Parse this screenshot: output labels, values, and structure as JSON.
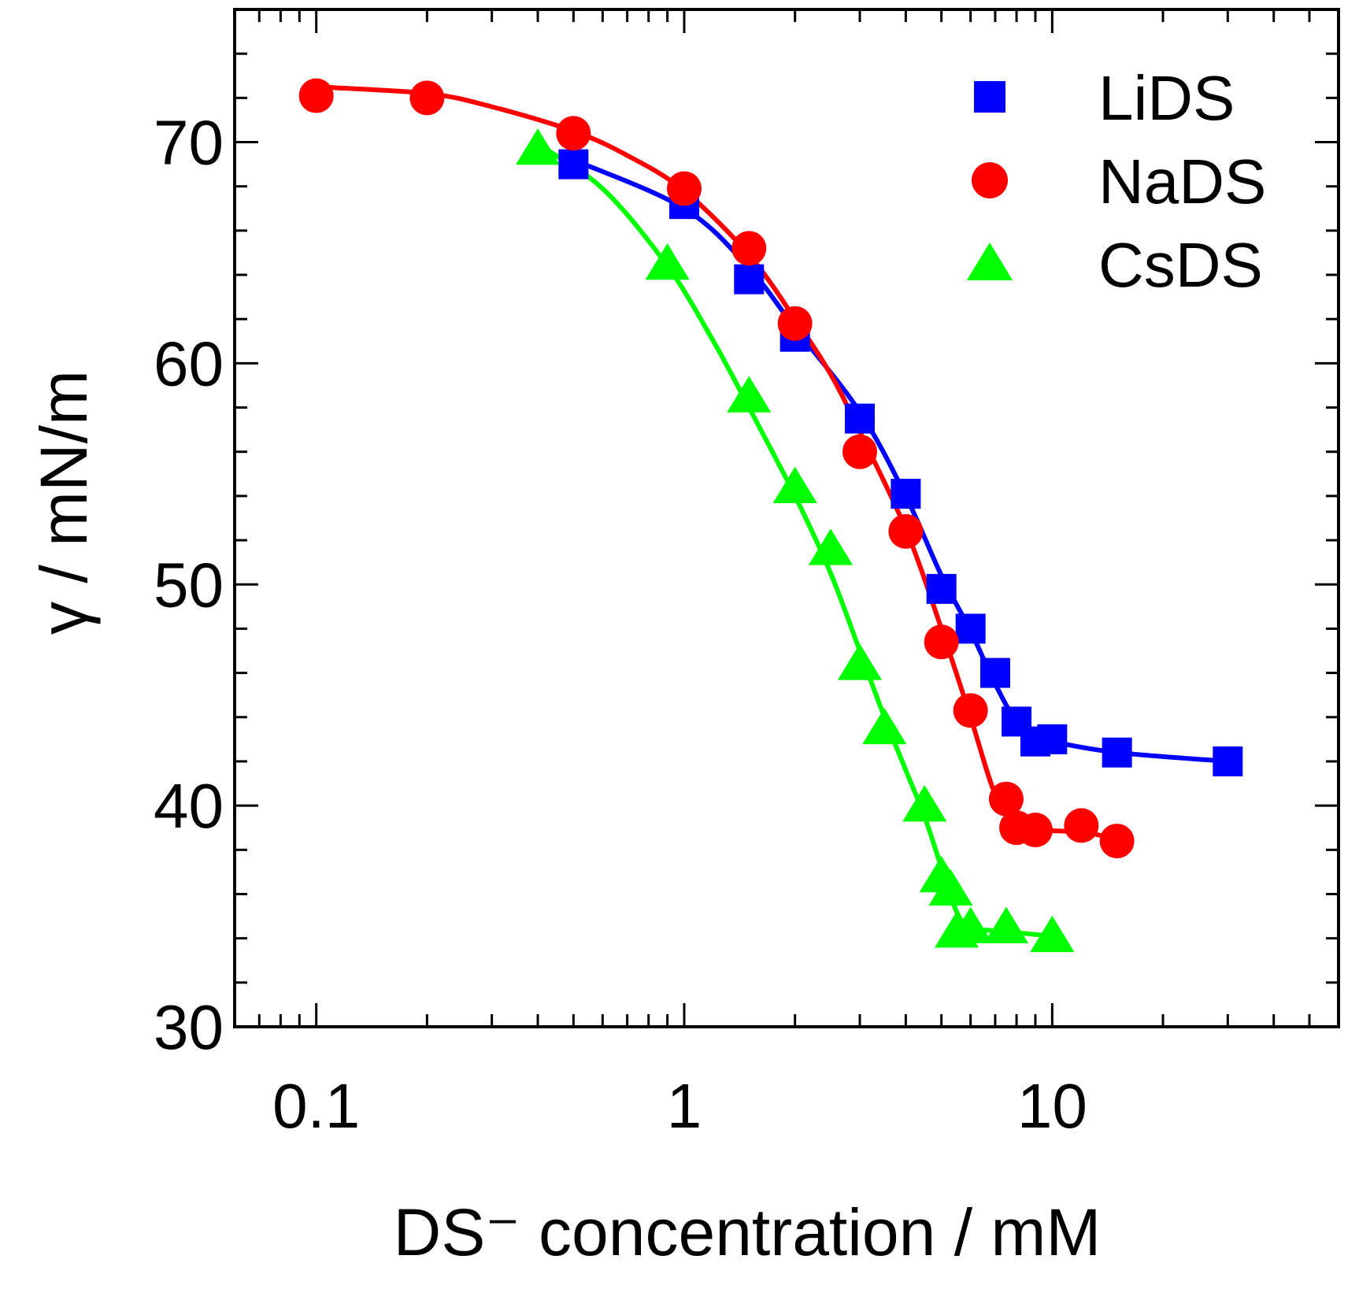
{
  "chart_data": {
    "type": "line",
    "x_scale": "log",
    "xlabel": "DS⁻ concentration / mM",
    "ylabel": "γ / mN/m",
    "xlim": [
      0.06,
      60
    ],
    "ylim": [
      30,
      76
    ],
    "x_ticks": [
      {
        "value": 0.1,
        "label": "0.1"
      },
      {
        "value": 1,
        "label": "1"
      },
      {
        "value": 10,
        "label": "10"
      }
    ],
    "y_ticks": [
      {
        "value": 30,
        "label": "30"
      },
      {
        "value": 40,
        "label": "40"
      },
      {
        "value": 50,
        "label": "50"
      },
      {
        "value": 60,
        "label": "60"
      },
      {
        "value": 70,
        "label": "70"
      }
    ],
    "y_minor_step": 2,
    "legend_position": "top-right",
    "series": [
      {
        "name": "LiDS",
        "color": "#0000ff",
        "marker": "square",
        "points": [
          {
            "x": 0.5,
            "y": 69.0
          },
          {
            "x": 1.0,
            "y": 67.2
          },
          {
            "x": 1.5,
            "y": 63.8
          },
          {
            "x": 2.0,
            "y": 61.2
          },
          {
            "x": 3.0,
            "y": 57.5
          },
          {
            "x": 4.0,
            "y": 54.1
          },
          {
            "x": 5.0,
            "y": 49.8
          },
          {
            "x": 6.0,
            "y": 48.0
          },
          {
            "x": 7.0,
            "y": 46.0
          },
          {
            "x": 8.0,
            "y": 43.8
          },
          {
            "x": 9.0,
            "y": 42.9
          },
          {
            "x": 10.0,
            "y": 43.0
          },
          {
            "x": 15.0,
            "y": 42.4
          },
          {
            "x": 30.0,
            "y": 42.0
          }
        ],
        "fit": [
          {
            "x": 0.5,
            "y": 69.2
          },
          {
            "x": 1.0,
            "y": 67.0
          },
          {
            "x": 1.5,
            "y": 64.3
          },
          {
            "x": 2.0,
            "y": 61.6
          },
          {
            "x": 3.0,
            "y": 57.8
          },
          {
            "x": 4.0,
            "y": 54.0
          },
          {
            "x": 5.0,
            "y": 50.4
          },
          {
            "x": 6.0,
            "y": 47.9
          },
          {
            "x": 7.0,
            "y": 45.5
          },
          {
            "x": 8.0,
            "y": 43.8
          },
          {
            "x": 9.0,
            "y": 43.2
          },
          {
            "x": 10.0,
            "y": 42.9
          },
          {
            "x": 15.0,
            "y": 42.4
          },
          {
            "x": 30.0,
            "y": 42.0
          }
        ]
      },
      {
        "name": "NaDS",
        "color": "#ff0000",
        "marker": "circle",
        "points": [
          {
            "x": 0.1,
            "y": 72.1
          },
          {
            "x": 0.2,
            "y": 72.0
          },
          {
            "x": 0.5,
            "y": 70.4
          },
          {
            "x": 1.0,
            "y": 67.9
          },
          {
            "x": 1.5,
            "y": 65.2
          },
          {
            "x": 2.0,
            "y": 61.8
          },
          {
            "x": 3.0,
            "y": 56.0
          },
          {
            "x": 4.0,
            "y": 52.4
          },
          {
            "x": 5.0,
            "y": 47.4
          },
          {
            "x": 6.0,
            "y": 44.3
          },
          {
            "x": 7.5,
            "y": 40.3
          },
          {
            "x": 8.0,
            "y": 39.0
          },
          {
            "x": 9.0,
            "y": 38.9
          },
          {
            "x": 12.0,
            "y": 39.1
          },
          {
            "x": 15.0,
            "y": 38.4
          }
        ],
        "fit": [
          {
            "x": 0.1,
            "y": 72.5
          },
          {
            "x": 0.2,
            "y": 72.2
          },
          {
            "x": 0.3,
            "y": 71.6
          },
          {
            "x": 0.5,
            "y": 70.5
          },
          {
            "x": 0.7,
            "y": 69.4
          },
          {
            "x": 1.0,
            "y": 67.8
          },
          {
            "x": 1.5,
            "y": 64.9
          },
          {
            "x": 2.0,
            "y": 62.0
          },
          {
            "x": 2.5,
            "y": 59.5
          },
          {
            "x": 3.0,
            "y": 56.9
          },
          {
            "x": 4.0,
            "y": 52.5
          },
          {
            "x": 5.0,
            "y": 48.0
          },
          {
            "x": 6.0,
            "y": 44.0
          },
          {
            "x": 7.0,
            "y": 40.5
          },
          {
            "x": 8.0,
            "y": 39.1
          },
          {
            "x": 9.0,
            "y": 38.9
          },
          {
            "x": 12.0,
            "y": 38.8
          },
          {
            "x": 15.0,
            "y": 38.5
          }
        ]
      },
      {
        "name": "CsDS",
        "color": "#00ff00",
        "marker": "triangle",
        "points": [
          {
            "x": 0.4,
            "y": 69.7
          },
          {
            "x": 0.9,
            "y": 64.5
          },
          {
            "x": 1.5,
            "y": 58.5
          },
          {
            "x": 2.0,
            "y": 54.4
          },
          {
            "x": 2.5,
            "y": 51.6
          },
          {
            "x": 3.0,
            "y": 46.4
          },
          {
            "x": 3.5,
            "y": 43.5
          },
          {
            "x": 4.5,
            "y": 40.0
          },
          {
            "x": 5.0,
            "y": 36.8
          },
          {
            "x": 5.3,
            "y": 36.2
          },
          {
            "x": 5.5,
            "y": 34.3
          },
          {
            "x": 6.0,
            "y": 34.5
          },
          {
            "x": 7.5,
            "y": 34.5
          },
          {
            "x": 10.0,
            "y": 34.1
          }
        ],
        "fit": [
          {
            "x": 0.4,
            "y": 69.9
          },
          {
            "x": 0.6,
            "y": 67.9
          },
          {
            "x": 0.9,
            "y": 64.4
          },
          {
            "x": 1.2,
            "y": 61.0
          },
          {
            "x": 1.5,
            "y": 58.0
          },
          {
            "x": 2.0,
            "y": 54.0
          },
          {
            "x": 2.5,
            "y": 50.5
          },
          {
            "x": 3.0,
            "y": 47.0
          },
          {
            "x": 3.5,
            "y": 44.0
          },
          {
            "x": 4.0,
            "y": 41.6
          },
          {
            "x": 4.5,
            "y": 39.5
          },
          {
            "x": 5.0,
            "y": 37.2
          },
          {
            "x": 5.5,
            "y": 35.2
          },
          {
            "x": 6.0,
            "y": 34.5
          },
          {
            "x": 7.5,
            "y": 34.3
          },
          {
            "x": 10.0,
            "y": 34.1
          }
        ]
      }
    ]
  }
}
